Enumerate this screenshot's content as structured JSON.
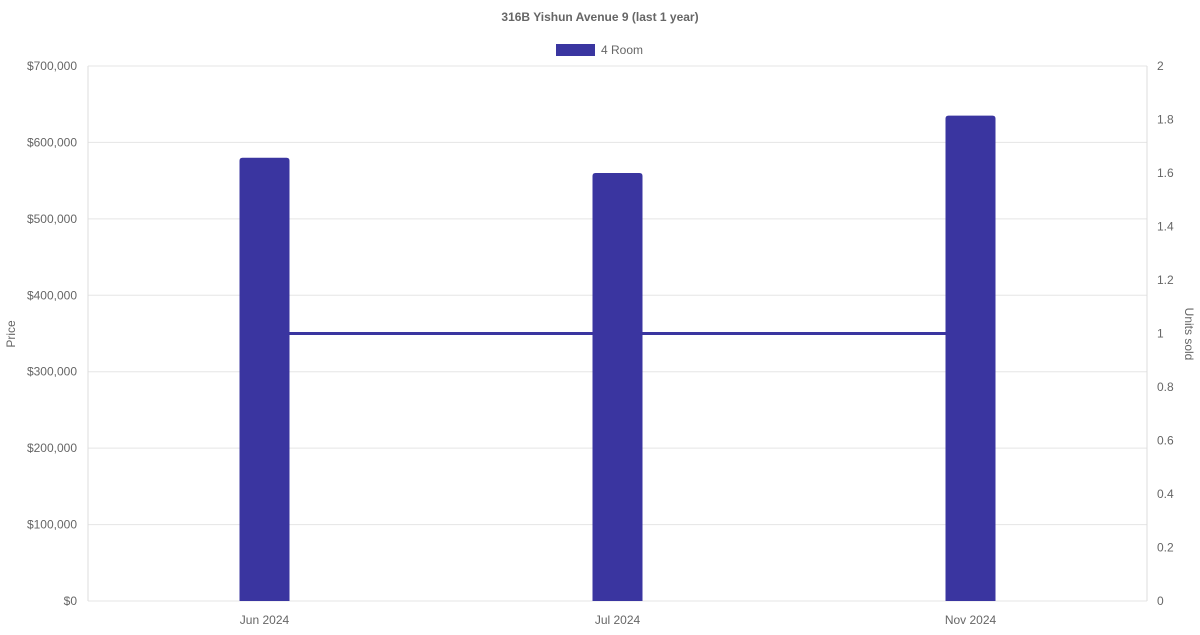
{
  "chart_data": {
    "type": "bar",
    "title": "316B Yishun Avenue 9 (last 1 year)",
    "categories": [
      "Jun 2024",
      "Jul 2024",
      "Nov 2024"
    ],
    "series": [
      {
        "name": "4 Room",
        "type": "bar",
        "axis": "left",
        "values": [
          580000,
          560000,
          635000
        ],
        "color": "#3a35a0"
      },
      {
        "type": "line",
        "axis": "right",
        "values": [
          1,
          1,
          1
        ],
        "color": "#3a35a0"
      }
    ],
    "ylabel": "Price",
    "y2label": "Units sold",
    "ylim": [
      0,
      700000
    ],
    "y2lim": [
      0,
      2
    ],
    "yticks": [
      "$0",
      "$100,000",
      "$200,000",
      "$300,000",
      "$400,000",
      "$500,000",
      "$600,000",
      "$700,000"
    ],
    "y2ticks": [
      "0",
      "0.2",
      "0.4",
      "0.6",
      "0.8",
      "1",
      "1.2",
      "1.4",
      "1.6",
      "1.8",
      "2"
    ],
    "legend": "top",
    "grid": true
  }
}
